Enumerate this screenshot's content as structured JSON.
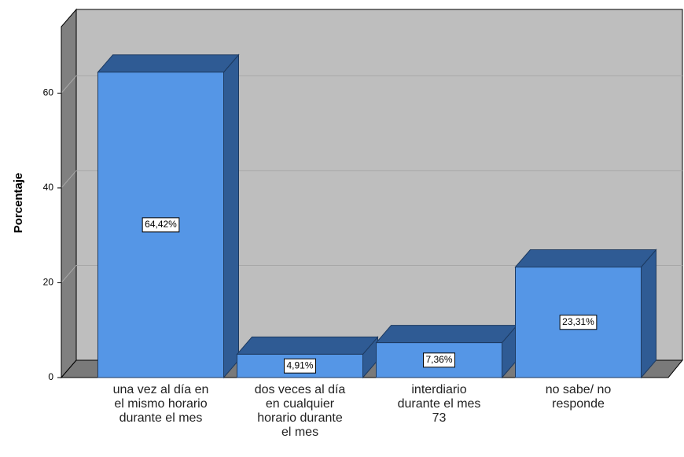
{
  "chart_data": {
    "type": "bar",
    "y_label": "Porcentaje",
    "categories": [
      "una vez al día en\nel mismo horario\ndurante el mes",
      "dos veces al día\nen cualquier\nhorario durante\nel mes",
      "interdiario\ndurante el mes\n73",
      "no sabe/ no\nresponde"
    ],
    "values": [
      64.42,
      4.91,
      7.36,
      23.31
    ],
    "value_labels": [
      "64,42%",
      "4,91%",
      "7,36%",
      "23,31%"
    ],
    "color": "#5596e6",
    "ylim": [
      0,
      74
    ],
    "yticks": [
      0,
      20,
      40,
      60
    ],
    "grid": true
  }
}
